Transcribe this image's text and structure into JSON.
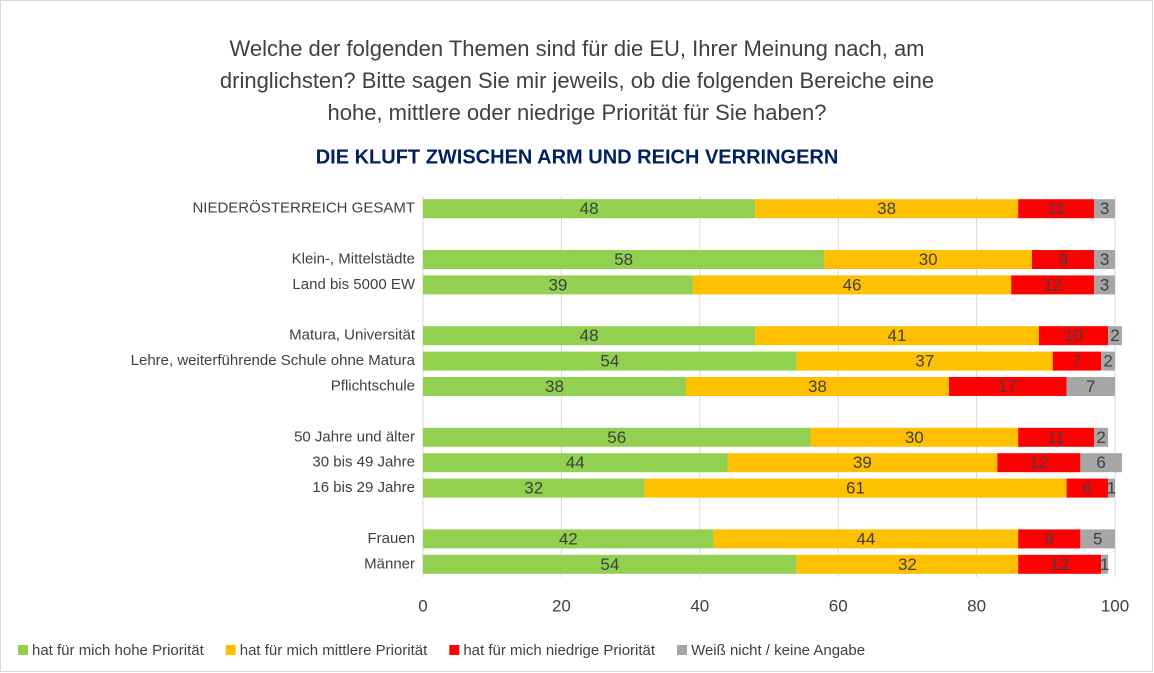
{
  "chart_data": {
    "type": "stacked_barh",
    "title": [
      "Welche der folgenden Themen sind für die EU, Ihrer Meinung nach, am",
      "dringlichsten? Bitte sagen Sie mir jeweils, ob die folgenden Bereiche eine",
      "hohe, mittlere oder niedrige Priorität für Sie haben?"
    ],
    "subtitle": "DIE KLUFT ZWISCHEN ARM UND REICH VERRINGERN",
    "categories": [
      "NIEDERÖSTERREICH GESAMT",
      null,
      "Klein-, Mittelstädte",
      "Land bis 5000 EW",
      null,
      "Matura, Universität",
      "Lehre, weiterführende Schule ohne Matura",
      "Pflichtschule",
      null,
      "50 Jahre und älter",
      "30 bis 49 Jahre",
      "16 bis 29 Jahre",
      null,
      "Frauen",
      "Männer"
    ],
    "series": [
      {
        "name": "hat für mich hohe Priorität",
        "color": "#92d050",
        "values": [
          48,
          null,
          58,
          39,
          null,
          48,
          54,
          38,
          null,
          56,
          44,
          32,
          null,
          42,
          54
        ]
      },
      {
        "name": "hat für mich mittlere Priorität",
        "color": "#ffc000",
        "values": [
          38,
          null,
          30,
          46,
          null,
          41,
          37,
          38,
          null,
          30,
          39,
          61,
          null,
          44,
          32
        ]
      },
      {
        "name": "hat für mich niedrige Priorität",
        "color": "#ff0000",
        "values": [
          11,
          null,
          9,
          12,
          null,
          10,
          7,
          17,
          null,
          11,
          12,
          6,
          null,
          9,
          12
        ]
      },
      {
        "name": "Weiß nicht / keine Angabe",
        "color": "#a6a6a6",
        "values": [
          3,
          null,
          3,
          3,
          null,
          2,
          2,
          7,
          null,
          2,
          6,
          1,
          null,
          5,
          1
        ]
      }
    ],
    "xlim": [
      0,
      100
    ],
    "xticks": [
      0,
      20,
      40,
      60,
      80,
      100
    ],
    "grid": true,
    "legend": "bottom"
  }
}
